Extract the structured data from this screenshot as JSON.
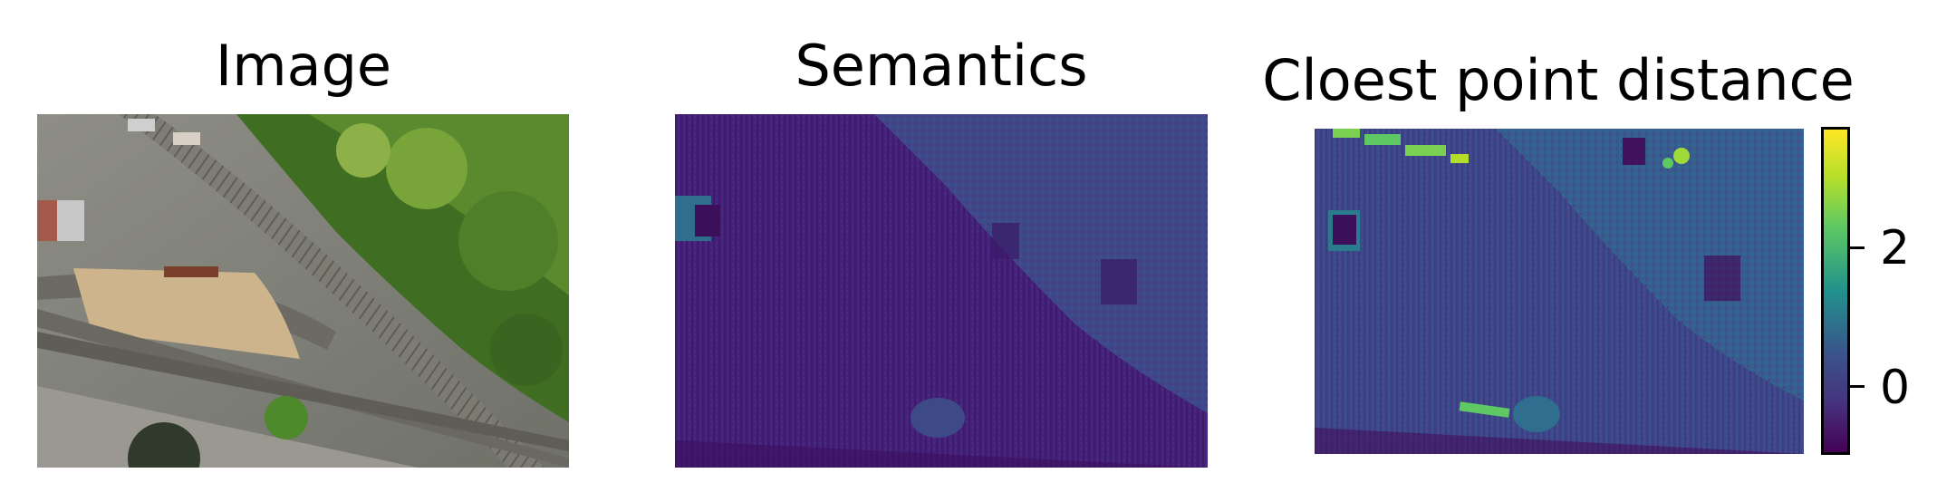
{
  "panels": [
    {
      "title": "Image",
      "icon": "aerial-photo"
    },
    {
      "title": "Semantics",
      "icon": "semantic-map"
    },
    {
      "title": "Cloest point distance",
      "icon": "distance-map"
    }
  ],
  "colorbar": {
    "colormap": "viridis",
    "ticks": [
      "2",
      "0"
    ],
    "colors": [
      "#fde725",
      "#5ec962",
      "#21918c",
      "#3b528b",
      "#440154"
    ]
  }
}
